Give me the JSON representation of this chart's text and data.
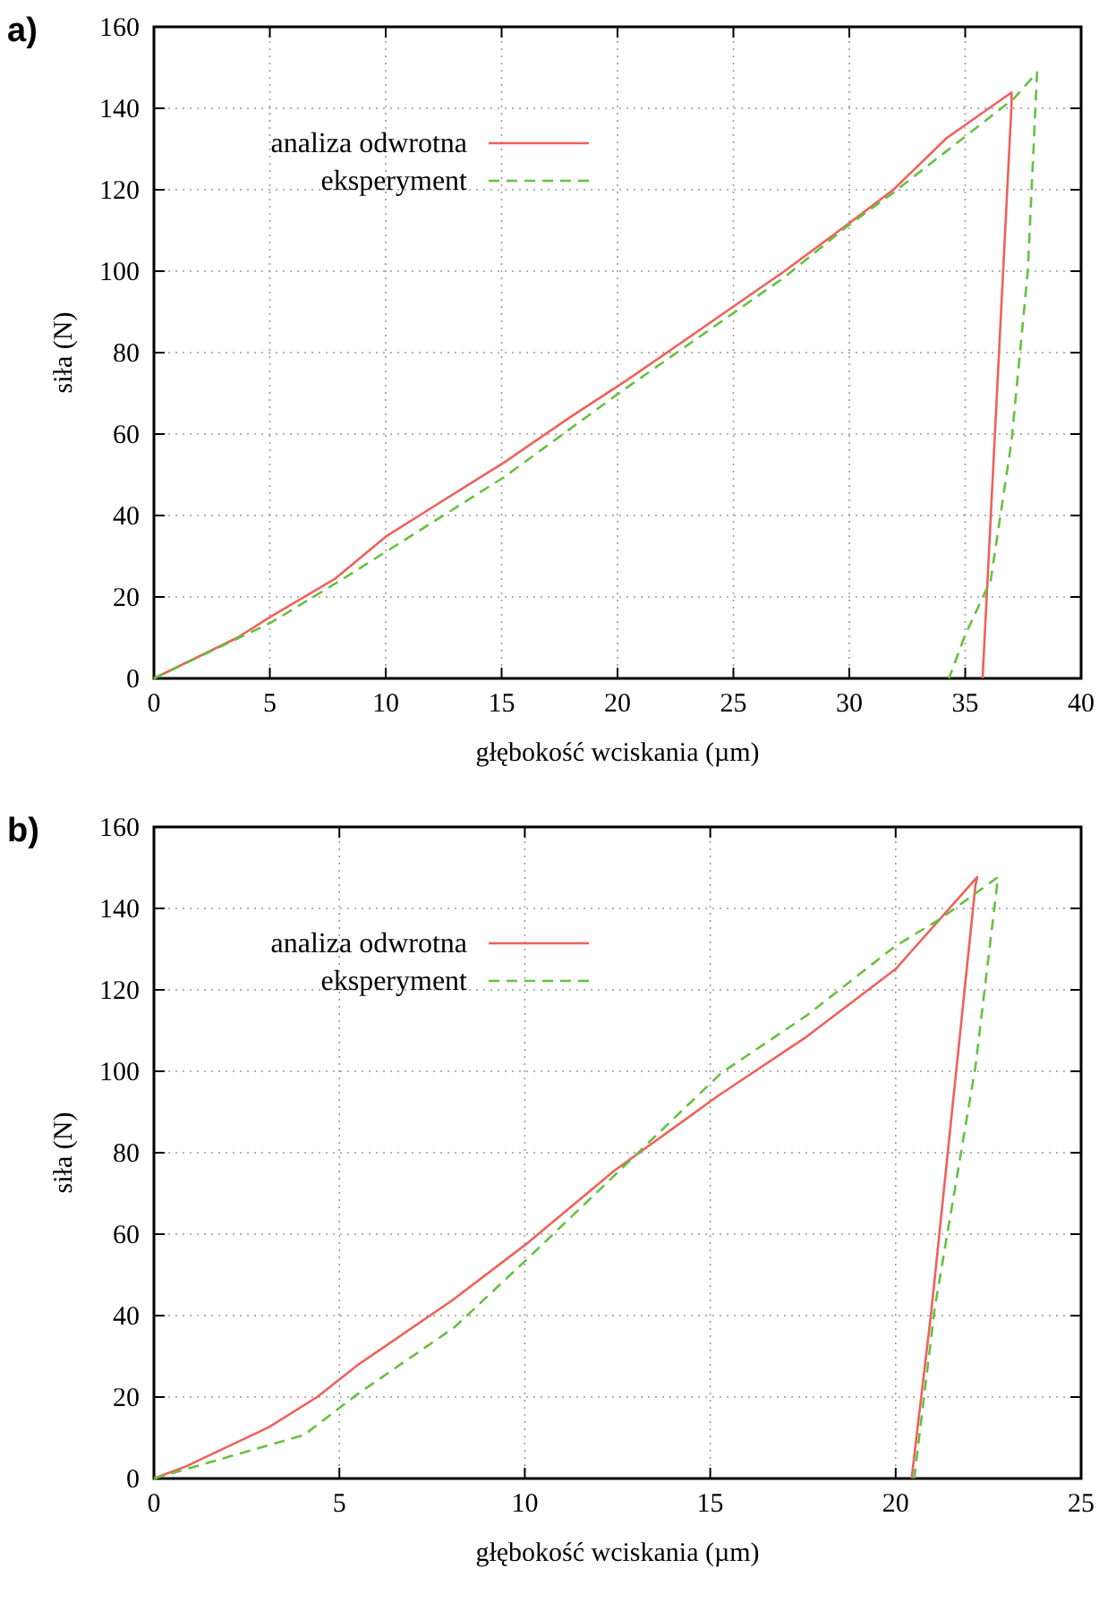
{
  "chart_data": [
    {
      "type": "line",
      "title": "a)",
      "xlabel": "głębokość wciskania (µm)",
      "ylabel": "siła (N)",
      "xlim": [
        0,
        40
      ],
      "xticks": [
        0,
        5,
        10,
        15,
        20,
        25,
        30,
        35,
        40
      ],
      "ylim": [
        0,
        160
      ],
      "yticks": [
        0,
        20,
        40,
        60,
        80,
        100,
        120,
        140,
        160
      ],
      "grid": true,
      "legend": "top left",
      "series": [
        {
          "name": "analiza odwrotna",
          "color": "#f0605a",
          "line_style": "solid",
          "x": [
            0,
            3.6,
            5.05,
            7.8,
            10.0,
            11.45,
            15.1,
            18.0,
            20.4,
            23.4,
            27.2,
            30.05,
            31.9,
            34.2,
            37.0,
            37.0,
            35.75
          ],
          "values": [
            0,
            10,
            15.2,
            24.4,
            34.8,
            40,
            53,
            64.3,
            73.2,
            85,
            100,
            112,
            120,
            132.7,
            143.9,
            141,
            0
          ]
        },
        {
          "name": "eksperyment",
          "color": "#66c040",
          "line_style": "dashed",
          "x": [
            0,
            5.05,
            8.06,
            15.1,
            20.1,
            27.2,
            29.9,
            31.9,
            37.1,
            38.1,
            37.7,
            37.0,
            36.1,
            35.0,
            34.3
          ],
          "values": [
            0,
            13.7,
            24.1,
            49.4,
            70.2,
            98.5,
            111,
            119.3,
            142.4,
            148.8,
            100,
            58.3,
            24.1,
            10.7,
            0
          ]
        }
      ]
    },
    {
      "type": "line",
      "title": "b)",
      "xlabel": "głębokość wciskania (µm)",
      "ylabel": "siła (N)",
      "xlim": [
        0,
        25
      ],
      "xticks": [
        0,
        5,
        10,
        15,
        20,
        25
      ],
      "ylim": [
        0,
        160
      ],
      "yticks": [
        0,
        20,
        40,
        60,
        80,
        100,
        120,
        140,
        160
      ],
      "grid": true,
      "legend": "top left",
      "series": [
        {
          "name": "analiza odwrotna",
          "color": "#f0605a",
          "line_style": "solid",
          "x": [
            0,
            0.87,
            3.1,
            4.4,
            5.5,
            8.05,
            10.1,
            12.4,
            15.2,
            17.6,
            20.0,
            22.2,
            22.15,
            20.96,
            20.43
          ],
          "values": [
            0,
            3,
            12.6,
            20,
            27.9,
            43.8,
            58,
            75.5,
            93.9,
            108.5,
            125.1,
            147.7,
            145.6,
            40.9,
            0
          ]
        },
        {
          "name": "eksperyment",
          "color": "#66c040",
          "line_style": "dashed",
          "x": [
            0,
            4.05,
            5.5,
            8.1,
            10.1,
            12.06,
            15.3,
            17.6,
            20.0,
            21.2,
            22.76,
            22.15,
            21.05,
            20.5
          ],
          "values": [
            0,
            10.7,
            20.8,
            37.1,
            54.2,
            71.3,
            99.6,
            113.7,
            130.8,
            137.4,
            147.7,
            101,
            41.6,
            0
          ]
        }
      ]
    }
  ]
}
